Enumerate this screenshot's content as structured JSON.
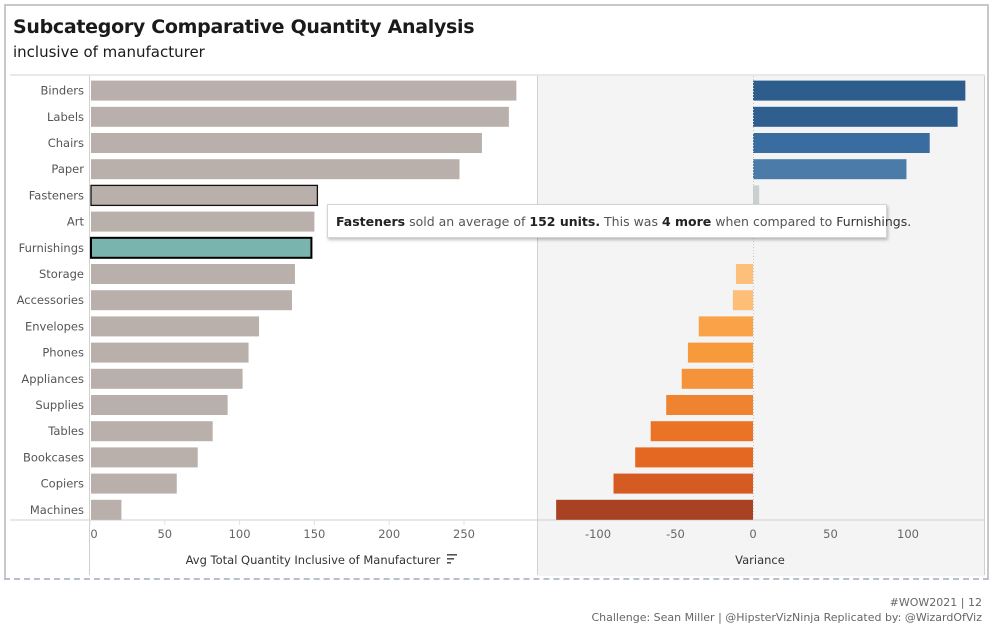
{
  "header": {
    "title": "Subcategory Comparative Quantity Analysis",
    "subtitle": "inclusive of manufacturer"
  },
  "tooltip": {
    "subject": "Fasteners",
    "text1": " sold an average of ",
    "value": "152 units.",
    "text2": " This was  ",
    "diff": "4 more",
    "text3": " when compared to ",
    "reference": "Furnishings."
  },
  "footer": {
    "line1": "#WOW2021 | 12",
    "line2": "Challenge: Sean Miller | @HipsterVizNinja   Replicated by: @WizardOfViz"
  },
  "colors": {
    "bar_default": "#bab0ab",
    "bar_reference": "#79b5ae",
    "variance_neutral": "#c9d0d0",
    "right_panel_bg": "#f4f4f4"
  },
  "chart_data": [
    {
      "type": "bar",
      "orientation": "horizontal",
      "title": "",
      "xlabel": "Avg Total Quantity Inclusive of Manufacturer",
      "ylabel": "",
      "xlim": [
        0,
        290
      ],
      "xticks": [
        0,
        50,
        100,
        150,
        200,
        250
      ],
      "sort_icon": "sort-descending-icon",
      "highlighted": "Fasteners",
      "reference": "Furnishings",
      "categories": [
        "Binders",
        "Labels",
        "Chairs",
        "Paper",
        "Fasteners",
        "Art",
        "Furnishings",
        "Storage",
        "Accessories",
        "Envelopes",
        "Phones",
        "Appliances",
        "Supplies",
        "Tables",
        "Bookcases",
        "Copiers",
        "Machines"
      ],
      "values": [
        285,
        280,
        262,
        247,
        152,
        150,
        148,
        137,
        135,
        113,
        106,
        102,
        92,
        82,
        72,
        58,
        21
      ]
    },
    {
      "type": "bar",
      "orientation": "horizontal",
      "title": "",
      "xlabel": "Variance",
      "ylabel": "",
      "xlim": [
        -137,
        140
      ],
      "xticks": [
        -100,
        -50,
        0,
        50,
        100
      ],
      "categories": [
        "Binders",
        "Labels",
        "Chairs",
        "Paper",
        "Fasteners",
        "Art",
        "Furnishings",
        "Storage",
        "Accessories",
        "Envelopes",
        "Phones",
        "Appliances",
        "Supplies",
        "Tables",
        "Bookcases",
        "Copiers",
        "Machines"
      ],
      "values": [
        137,
        132,
        114,
        99,
        4,
        2,
        0,
        -11,
        -13,
        -35,
        -42,
        -46,
        -56,
        -66,
        -76,
        -90,
        -127
      ],
      "colors": [
        "#2c5d8c",
        "#2e5f8e",
        "#3a6d9f",
        "#4a7ba9",
        "#c9d0d0",
        "#c9d0d0",
        "#c9d0d0",
        "#fdc07a",
        "#fdbf77",
        "#f9a248",
        "#f79a3c",
        "#f5933a",
        "#f08330",
        "#eb7326",
        "#e46822",
        "#d55b22",
        "#a84222"
      ]
    }
  ]
}
